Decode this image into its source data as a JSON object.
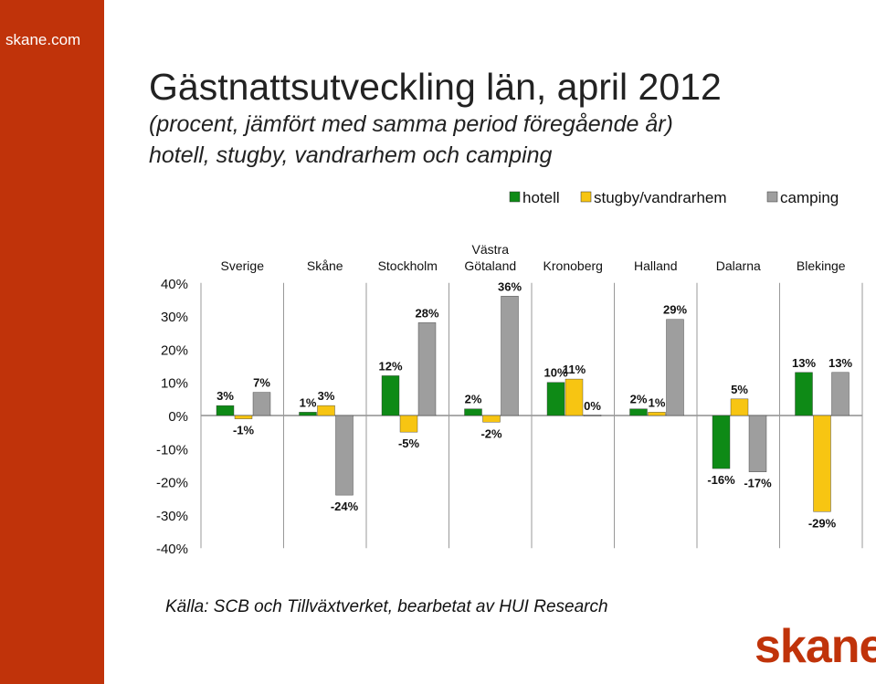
{
  "site": "skane.com",
  "title": "Gästnattsutveckling län, april 2012",
  "subtitle1": "(procent, jämfört med samma period föregående år)",
  "subtitle2": "hotell, stugby, vandrarhem och camping",
  "source": "Källa: SCB och Tillväxtverket, bearbetat av HUI Research",
  "logo": "skane",
  "colors": {
    "hotell": "#0e8a16",
    "stugby": "#f7c512",
    "camping": "#9e9e9e",
    "brand": "#c0330a"
  },
  "chart_data": {
    "type": "bar",
    "categories": [
      "Sverige",
      "Skåne",
      "Stockholm",
      "Västra Götaland",
      "Kronoberg",
      "Halland",
      "Dalarna",
      "Blekinge"
    ],
    "series": [
      {
        "name": "hotell",
        "values": [
          3,
          1,
          12,
          2,
          10,
          2,
          -16,
          13
        ],
        "labels": [
          "3%",
          "1%",
          "12%",
          "2%",
          "10%",
          "2%",
          "-16%",
          "13%"
        ]
      },
      {
        "name": "stugby/vandrarhem",
        "values": [
          -1,
          3,
          -5,
          -2,
          11,
          1,
          5,
          -29
        ],
        "labels": [
          "-1%",
          "3%",
          "-5%",
          "-2%",
          "11%",
          "1%",
          "5%",
          "-29%"
        ]
      },
      {
        "name": "camping",
        "values": [
          7,
          -24,
          28,
          36,
          0,
          29,
          -17,
          13
        ],
        "labels": [
          "7%",
          "-24%",
          "28%",
          "36%",
          "0%",
          "29%",
          "-17%",
          "13%"
        ]
      }
    ],
    "yticks": [
      "40%",
      "30%",
      "20%",
      "10%",
      "0%",
      "-10%",
      "-20%",
      "-30%",
      "-40%"
    ],
    "ylim": [
      -40,
      40
    ],
    "legend_position": "top-right",
    "grid": false
  }
}
